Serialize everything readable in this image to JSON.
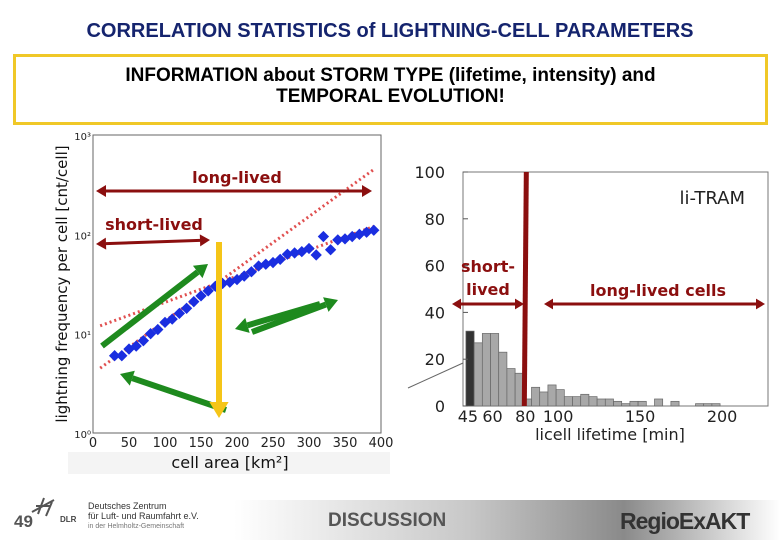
{
  "title": "CORRELATION STATISTICS of LIGHTNING-CELL PARAMETERS",
  "info_box": {
    "line1": "INFORMATION about STORM TYPE (lifetime, intensity) and",
    "line2": "TEMPORAL EVOLUTION!"
  },
  "footer": {
    "page_number": "49",
    "dlr_line1": "Deutsches Zentrum",
    "dlr_line2": "für Luft- und Raumfahrt e.V.",
    "dlr_line3": "in der Helmholtz-Gemeinschaft",
    "dlr_logo_text": "DLR",
    "section": "DISCUSSION",
    "project_logo": "RegioExAKT"
  },
  "colors": {
    "title": "#15246e",
    "box_border": "#f0c828",
    "annotation": "#8b0f0f",
    "points": "#1a2ee0",
    "fit": "#e05050",
    "green_arrows": "#1e8a1e",
    "yellow_arrow": "#f5c518",
    "bars": "#a8a8a8",
    "first_bar": "#333333"
  },
  "chart_data": [
    {
      "type": "scatter",
      "xlabel": "cell area [km²]",
      "ylabel": "lightning frequency per cell [cnt/cell]",
      "xlim": [
        0,
        400
      ],
      "ylim": [
        1,
        1000
      ],
      "yscale": "log",
      "xticks": [
        "0",
        "50",
        "100",
        "150",
        "200",
        "250",
        "300",
        "350",
        "400"
      ],
      "yticks": [
        "10⁰",
        "10¹",
        "10²",
        "10³"
      ],
      "points": {
        "x": [
          30,
          40,
          50,
          60,
          70,
          80,
          90,
          100,
          110,
          120,
          130,
          140,
          150,
          160,
          170,
          180,
          190,
          200,
          210,
          220,
          230,
          240,
          250,
          260,
          270,
          280,
          290,
          300,
          310,
          320,
          330,
          340,
          350,
          360,
          370,
          380,
          390
        ],
        "y": [
          6,
          6,
          7,
          7.5,
          8.5,
          10,
          11,
          13,
          14,
          16,
          18,
          21,
          24,
          27,
          30,
          32,
          33,
          35,
          38,
          42,
          48,
          50,
          52,
          56,
          63,
          65,
          67,
          72,
          62,
          95,
          70,
          88,
          90,
          95,
          100,
          105,
          110
        ]
      },
      "fit_lines": [
        {
          "x": [
            10,
            390
          ],
          "y": [
            4.5,
            450
          ]
        },
        {
          "x": [
            10,
            390
          ],
          "y": [
            12,
            120
          ]
        }
      ],
      "annotations": {
        "long_lived": "long-lived",
        "short_lived": "short-lived"
      }
    },
    {
      "type": "bar",
      "xlabel": "licell lifetime [min]",
      "label": "li-TRAM",
      "xlim": [
        42,
        228
      ],
      "ylim": [
        0,
        100
      ],
      "xticks": [
        "45",
        "60",
        "80",
        "100",
        "150",
        "200"
      ],
      "yticks": [
        "0",
        "20",
        "40",
        "60",
        "80",
        "100"
      ],
      "bins": [
        45,
        50,
        55,
        60,
        65,
        70,
        75,
        80,
        85,
        90,
        95,
        100,
        105,
        110,
        115,
        120,
        125,
        130,
        135,
        140,
        145,
        150,
        155,
        160,
        165,
        170,
        175,
        180,
        185,
        190,
        195
      ],
      "values": [
        32,
        27,
        31,
        31,
        23,
        16,
        14,
        3,
        8,
        6,
        9,
        7,
        4,
        4,
        5,
        4,
        3,
        3,
        2,
        1,
        2,
        2,
        0,
        3,
        0,
        2,
        0,
        0,
        1,
        1,
        1
      ],
      "threshold": 80,
      "annotations": {
        "short_lived": "short-\nlived",
        "long_lived": "long-lived cells"
      }
    }
  ]
}
